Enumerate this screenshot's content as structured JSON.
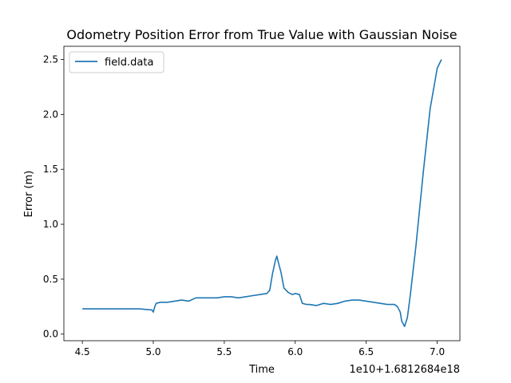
{
  "chart_data": {
    "type": "line",
    "title": "Odometry Position Error from True Value with Gaussian Noise",
    "xlabel": "Time",
    "ylabel": "Error (m)",
    "x_offset_label": "1e10+1.6812684e18",
    "xlim": [
      4.37,
      7.16
    ],
    "ylim": [
      -0.06,
      2.62
    ],
    "xticks": [
      4.5,
      5.0,
      5.5,
      6.0,
      6.5,
      7.0
    ],
    "xtick_labels": [
      "4.5",
      "5.0",
      "5.5",
      "6.0",
      "6.5",
      "7.0"
    ],
    "yticks": [
      0.0,
      0.5,
      1.0,
      1.5,
      2.0,
      2.5
    ],
    "ytick_labels": [
      "0.0",
      "0.5",
      "1.0",
      "1.5",
      "2.0",
      "2.5"
    ],
    "grid": false,
    "legend": "top-left",
    "series": [
      {
        "name": "field.data",
        "color": "#1f77b4",
        "x": [
          4.5,
          4.6,
          4.7,
          4.8,
          4.9,
          4.99,
          5.0,
          5.01,
          5.02,
          5.05,
          5.1,
          5.15,
          5.2,
          5.25,
          5.3,
          5.35,
          5.4,
          5.45,
          5.5,
          5.55,
          5.6,
          5.65,
          5.7,
          5.75,
          5.8,
          5.82,
          5.84,
          5.86,
          5.87,
          5.88,
          5.9,
          5.92,
          5.95,
          5.98,
          6.0,
          6.03,
          6.05,
          6.08,
          6.1,
          6.15,
          6.2,
          6.25,
          6.3,
          6.35,
          6.4,
          6.45,
          6.5,
          6.55,
          6.6,
          6.65,
          6.7,
          6.72,
          6.74,
          6.75,
          6.77,
          6.79,
          6.81,
          6.85,
          6.9,
          6.95,
          7.0,
          7.03
        ],
        "y": [
          0.23,
          0.23,
          0.23,
          0.23,
          0.23,
          0.22,
          0.2,
          0.25,
          0.28,
          0.29,
          0.29,
          0.3,
          0.31,
          0.3,
          0.33,
          0.33,
          0.33,
          0.33,
          0.34,
          0.34,
          0.33,
          0.34,
          0.35,
          0.36,
          0.37,
          0.4,
          0.55,
          0.67,
          0.71,
          0.66,
          0.56,
          0.42,
          0.38,
          0.36,
          0.37,
          0.36,
          0.28,
          0.27,
          0.27,
          0.26,
          0.28,
          0.27,
          0.28,
          0.3,
          0.31,
          0.31,
          0.3,
          0.29,
          0.28,
          0.27,
          0.27,
          0.25,
          0.2,
          0.12,
          0.07,
          0.15,
          0.35,
          0.8,
          1.45,
          2.05,
          2.42,
          2.5
        ]
      }
    ]
  }
}
